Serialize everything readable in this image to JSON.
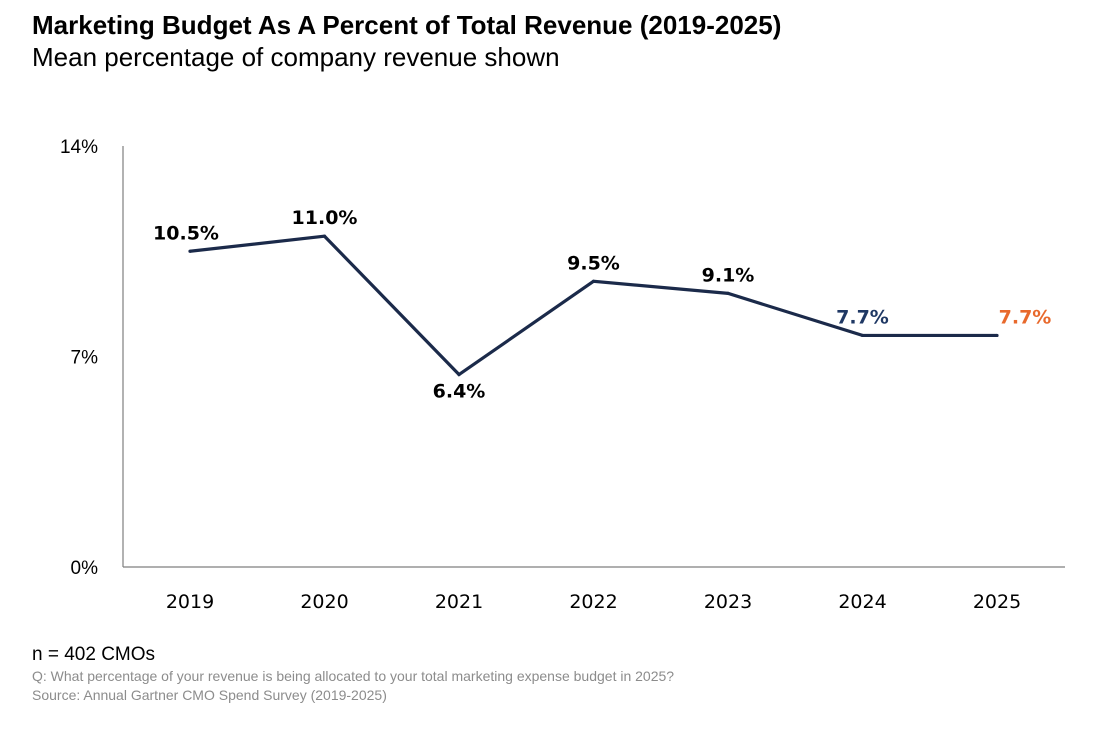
{
  "header": {
    "title": "Marketing Budget As A Percent of Total Revenue (2019-2025)",
    "subtitle": "Mean percentage of company revenue shown"
  },
  "chart_data": {
    "type": "line",
    "title": "Marketing Budget As A Percent of Total Revenue (2019-2025)",
    "subtitle": "Mean percentage of company revenue shown",
    "xlabel": "",
    "ylabel": "",
    "categories": [
      "2019",
      "2020",
      "2021",
      "2022",
      "2023",
      "2024",
      "2025"
    ],
    "series": [
      {
        "name": "Marketing budget as % of revenue",
        "values": [
          10.5,
          11.0,
          6.4,
          9.5,
          9.1,
          7.7,
          7.7
        ],
        "labels": [
          "10.5%",
          "11.0%",
          "6.4%",
          "9.5%",
          "9.1%",
          "7.7%",
          "7.7%"
        ],
        "label_colors": [
          "#000000",
          "#000000",
          "#000000",
          "#000000",
          "#000000",
          "#1f3864",
          "#e8692c"
        ],
        "label_positions": [
          "above",
          "above",
          "below",
          "above",
          "above",
          "above",
          "above"
        ]
      }
    ],
    "ylim": [
      0,
      14
    ],
    "yticks": [
      0,
      7,
      14
    ],
    "ytick_labels": [
      "0%",
      "7%",
      "14%"
    ],
    "grid": false,
    "line_color": "#1b2a4a",
    "axis_color": "#7f7f7f"
  },
  "footer": {
    "n": "n = 402 CMOs",
    "question": "Q: What percentage of your revenue is being allocated to your total marketing expense budget in 2025?",
    "source": "Source: Annual Gartner CMO Spend Survey (2019-2025)"
  }
}
